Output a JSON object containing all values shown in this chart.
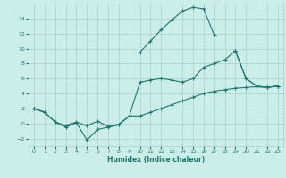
{
  "xlabel": "Humidex (Indice chaleur)",
  "background_color": "#cceee8",
  "grid_color": "#aacccc",
  "line_color": "#1a7a6e",
  "x": [
    0,
    1,
    2,
    3,
    4,
    5,
    6,
    7,
    8,
    9,
    10,
    11,
    12,
    13,
    14,
    15,
    16,
    17,
    18,
    19,
    20,
    21,
    22,
    23
  ],
  "line_max": [
    2.0,
    1.5,
    null,
    null,
    null,
    null,
    null,
    null,
    null,
    null,
    9.5,
    11.0,
    12.5,
    13.8,
    15.0,
    15.5,
    15.3,
    11.8,
    null,
    9.7,
    6.0,
    5.0,
    4.8,
    5.0
  ],
  "line_mean": [
    2.0,
    1.5,
    0.2,
    -0.3,
    0.2,
    -0.3,
    0.3,
    -0.4,
    -0.1,
    1.0,
    5.5,
    5.8,
    6.0,
    5.8,
    5.5,
    6.0,
    7.5,
    8.0,
    8.5,
    9.7,
    6.0,
    5.0,
    4.8,
    5.0
  ],
  "line_min": [
    2.0,
    1.5,
    0.2,
    -0.5,
    0.1,
    -2.2,
    -0.8,
    -0.5,
    -0.2,
    1.0,
    1.0,
    1.5,
    2.0,
    2.5,
    3.0,
    3.5,
    4.0,
    4.3,
    4.5,
    4.7,
    4.8,
    4.9,
    4.8,
    5.0
  ],
  "ylim": [
    -3,
    16
  ],
  "yticks": [
    -2,
    0,
    2,
    4,
    6,
    8,
    10,
    12,
    14
  ],
  "xticks": [
    0,
    1,
    2,
    3,
    4,
    5,
    6,
    7,
    8,
    9,
    10,
    11,
    12,
    13,
    14,
    15,
    16,
    17,
    18,
    19,
    20,
    21,
    22,
    23
  ],
  "marker": "+"
}
